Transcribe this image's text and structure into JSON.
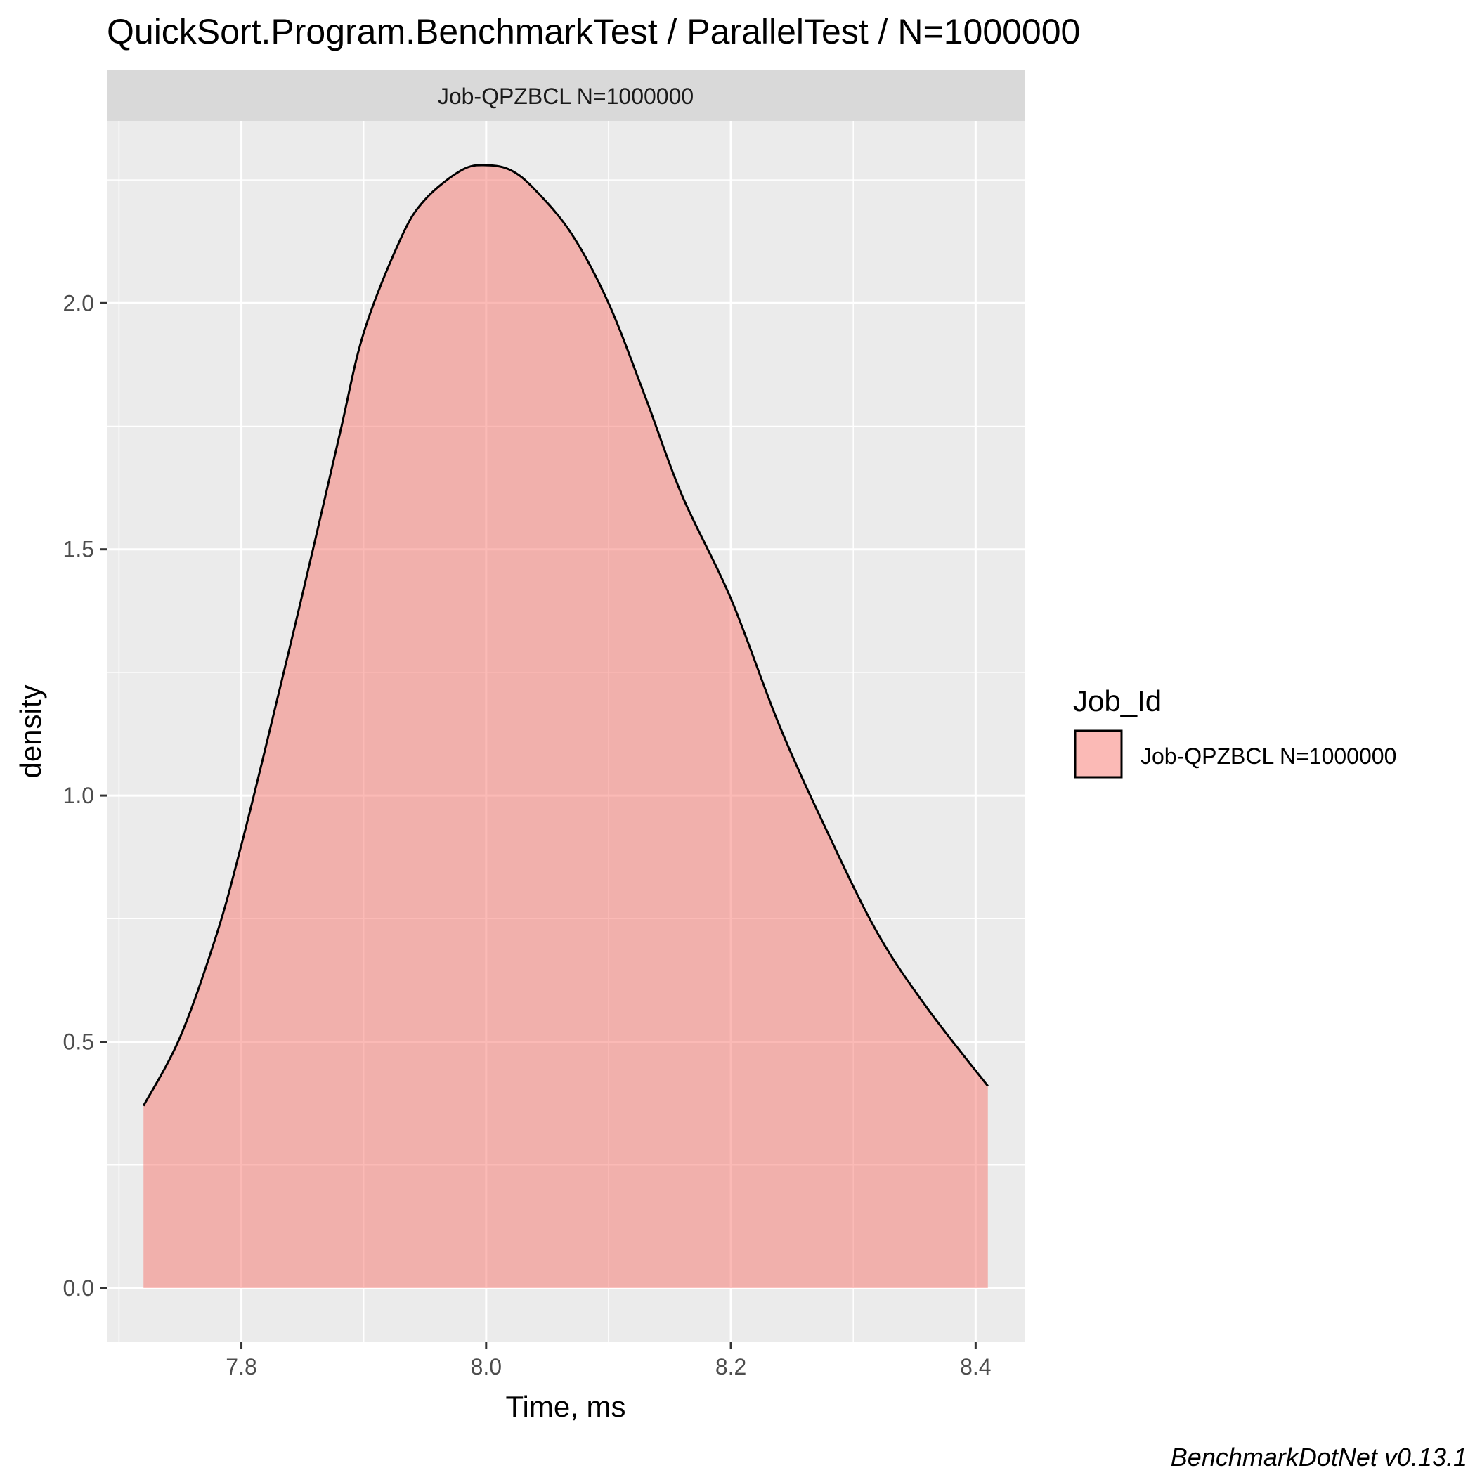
{
  "chart_data": {
    "type": "area",
    "title": "QuickSort.Program.BenchmarkTest / ParallelTest / N=1000000",
    "facet_label": "Job-QPZBCL N=1000000",
    "xlabel": "Time, ms",
    "ylabel": "density",
    "xlim": [
      7.69,
      8.44
    ],
    "ylim": [
      -0.11,
      2.37
    ],
    "x_ticks": [
      7.8,
      8.0,
      8.2,
      8.4
    ],
    "x_tick_labels": [
      "7.8",
      "8.0",
      "8.2",
      "8.4"
    ],
    "y_ticks": [
      0.0,
      0.5,
      1.0,
      1.5,
      2.0
    ],
    "y_tick_labels": [
      "0.0",
      "0.5",
      "1.0",
      "1.5",
      "2.0"
    ],
    "grid": true,
    "legend": {
      "title": "Job_Id",
      "position": "right",
      "entries": [
        "Job-QPZBCL N=1000000"
      ]
    },
    "series": [
      {
        "name": "Job-QPZBCL N=1000000",
        "fill": "#F8766D",
        "x": [
          7.72,
          7.75,
          7.78,
          7.8,
          7.82,
          7.85,
          7.88,
          7.9,
          7.93,
          7.95,
          7.98,
          8.0,
          8.02,
          8.04,
          8.07,
          8.1,
          8.13,
          8.16,
          8.2,
          8.24,
          8.28,
          8.32,
          8.36,
          8.41
        ],
        "y": [
          0.37,
          0.51,
          0.72,
          0.9,
          1.1,
          1.41,
          1.73,
          1.94,
          2.13,
          2.21,
          2.27,
          2.28,
          2.27,
          2.23,
          2.14,
          2.0,
          1.81,
          1.61,
          1.4,
          1.14,
          0.92,
          0.72,
          0.57,
          0.41
        ]
      }
    ]
  },
  "caption": "BenchmarkDotNet v0.13.1",
  "colors": {
    "panel_background": "#EBEBEB",
    "strip_background": "#D9D9D9",
    "grid": "#FFFFFF",
    "area_fill": "#F8766D",
    "outline": "#000000"
  }
}
